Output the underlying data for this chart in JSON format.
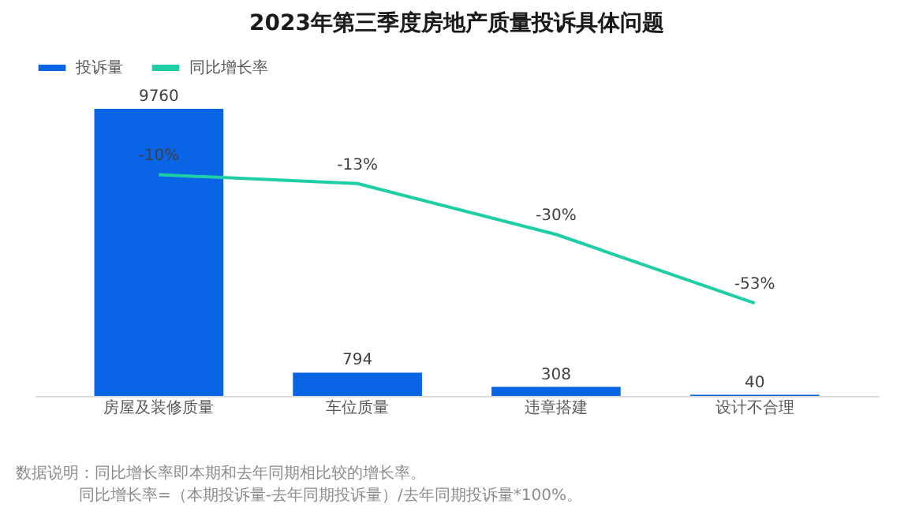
{
  "chart_data": {
    "type": "bar",
    "title": "2023年第三季度房地产质量投诉具体问题",
    "categories": [
      "房屋及装修质量",
      "车位质量",
      "违章搭建",
      "设计不合理"
    ],
    "series": [
      {
        "name": "投诉量",
        "color": "#0a64e6",
        "values": [
          9760,
          794,
          308,
          40
        ]
      },
      {
        "name": "同比增长率",
        "type": "line",
        "axis": "y2",
        "color": "#1ecfa6",
        "values": [
          -10,
          -13,
          -30,
          -53
        ],
        "value_labels": [
          "-10%",
          "-13%",
          "-30%",
          "-53%"
        ]
      }
    ],
    "ylim": [
      0,
      9760
    ],
    "y2lim": [
      -84,
      12
    ],
    "data_labels": true,
    "legend": "top",
    "tick_labels": "x",
    "grid": false,
    "marker": "none",
    "annotations": [
      "数据说明：同比增长率即本期和去年同期相比较的增长率。",
      "同比增长率=（本期投诉量-去年同期投诉量）/去年同期投诉量*100%。"
    ]
  }
}
